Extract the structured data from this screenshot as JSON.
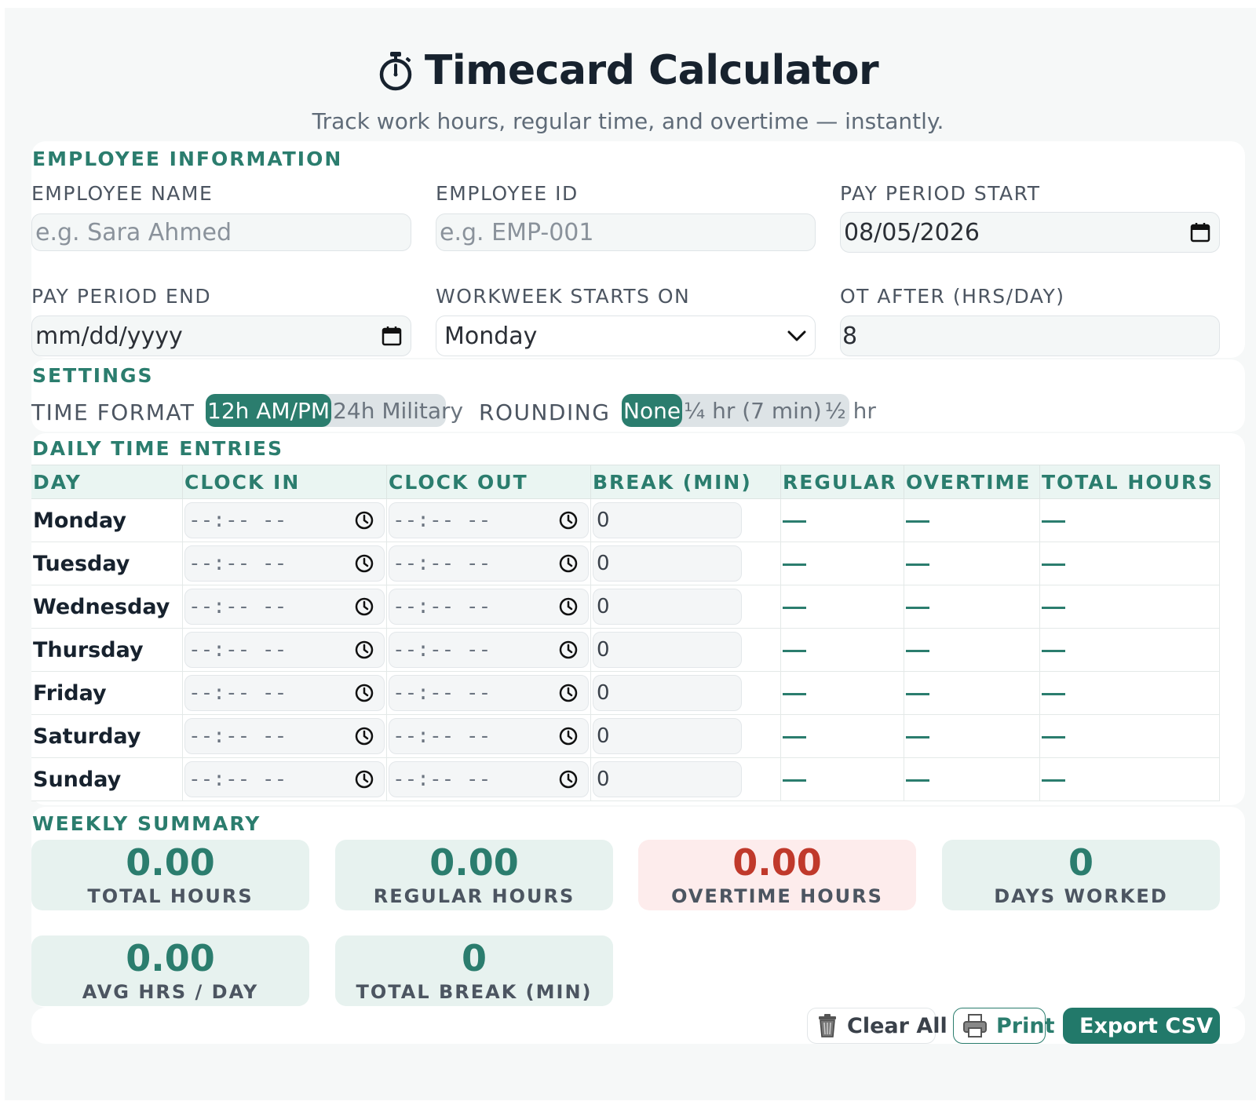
{
  "header": {
    "title": "Timecard Calculator",
    "subtitle": "Track work hours, regular time, and overtime — instantly."
  },
  "employee": {
    "section_title": "EMPLOYEE INFORMATION",
    "name_label": "EMPLOYEE NAME",
    "name_placeholder": "e.g. Sara Ahmed",
    "id_label": "EMPLOYEE ID",
    "id_placeholder": "e.g. EMP-001",
    "start_label": "PAY PERIOD START",
    "start_value": "08/05/2026",
    "end_label": "PAY PERIOD END",
    "end_placeholder": "mm/dd/yyyy",
    "week_label": "WORKWEEK STARTS ON",
    "week_value": "Monday",
    "ot_label": "OT AFTER (HRS/DAY)",
    "ot_value": "8"
  },
  "settings": {
    "section_title": "SETTINGS",
    "format_label": "TIME FORMAT",
    "format_options": [
      "12h AM/PM",
      "24h Military"
    ],
    "format_selected": "12h AM/PM",
    "rounding_label": "ROUNDING",
    "rounding_options": [
      "None",
      "¼ hr (7 min)",
      "½ hr"
    ],
    "rounding_selected": "None"
  },
  "entries": {
    "section_title": "DAILY TIME ENTRIES",
    "columns": [
      "DAY",
      "CLOCK IN",
      "CLOCK OUT",
      "BREAK (MIN)",
      "REGULAR",
      "OVERTIME",
      "TOTAL HOURS"
    ],
    "time_placeholder": "--:-- --",
    "rows": [
      {
        "day": "Monday",
        "break": "0"
      },
      {
        "day": "Tuesday",
        "break": "0"
      },
      {
        "day": "Wednesday",
        "break": "0"
      },
      {
        "day": "Thursday",
        "break": "0"
      },
      {
        "day": "Friday",
        "break": "0"
      },
      {
        "day": "Saturday",
        "break": "0"
      },
      {
        "day": "Sunday",
        "break": "0"
      }
    ]
  },
  "summary": {
    "section_title": "WEEKLY SUMMARY",
    "stats": [
      {
        "value": "0.00",
        "label": "TOTAL HOURS"
      },
      {
        "value": "0.00",
        "label": "REGULAR HOURS"
      },
      {
        "value": "0.00",
        "label": "OVERTIME HOURS"
      },
      {
        "value": "0",
        "label": "DAYS WORKED"
      },
      {
        "value": "0.00",
        "label": "AVG HRS / DAY"
      },
      {
        "value": "0",
        "label": "TOTAL BREAK (MIN)"
      }
    ]
  },
  "actions": {
    "clear_label": "Clear All",
    "print_label": "Print",
    "export_label": "Export CSV"
  },
  "colors": {
    "accent": "#2b7d6e",
    "overtime": "#c0392b",
    "stat_bg": "#e7f2ef",
    "overtime_bg": "#fdecec"
  },
  "icons": [
    "stopwatch-icon",
    "calendar-icon",
    "chevron-down-icon",
    "clock-icon",
    "trash-icon",
    "printer-icon",
    "download-icon"
  ]
}
